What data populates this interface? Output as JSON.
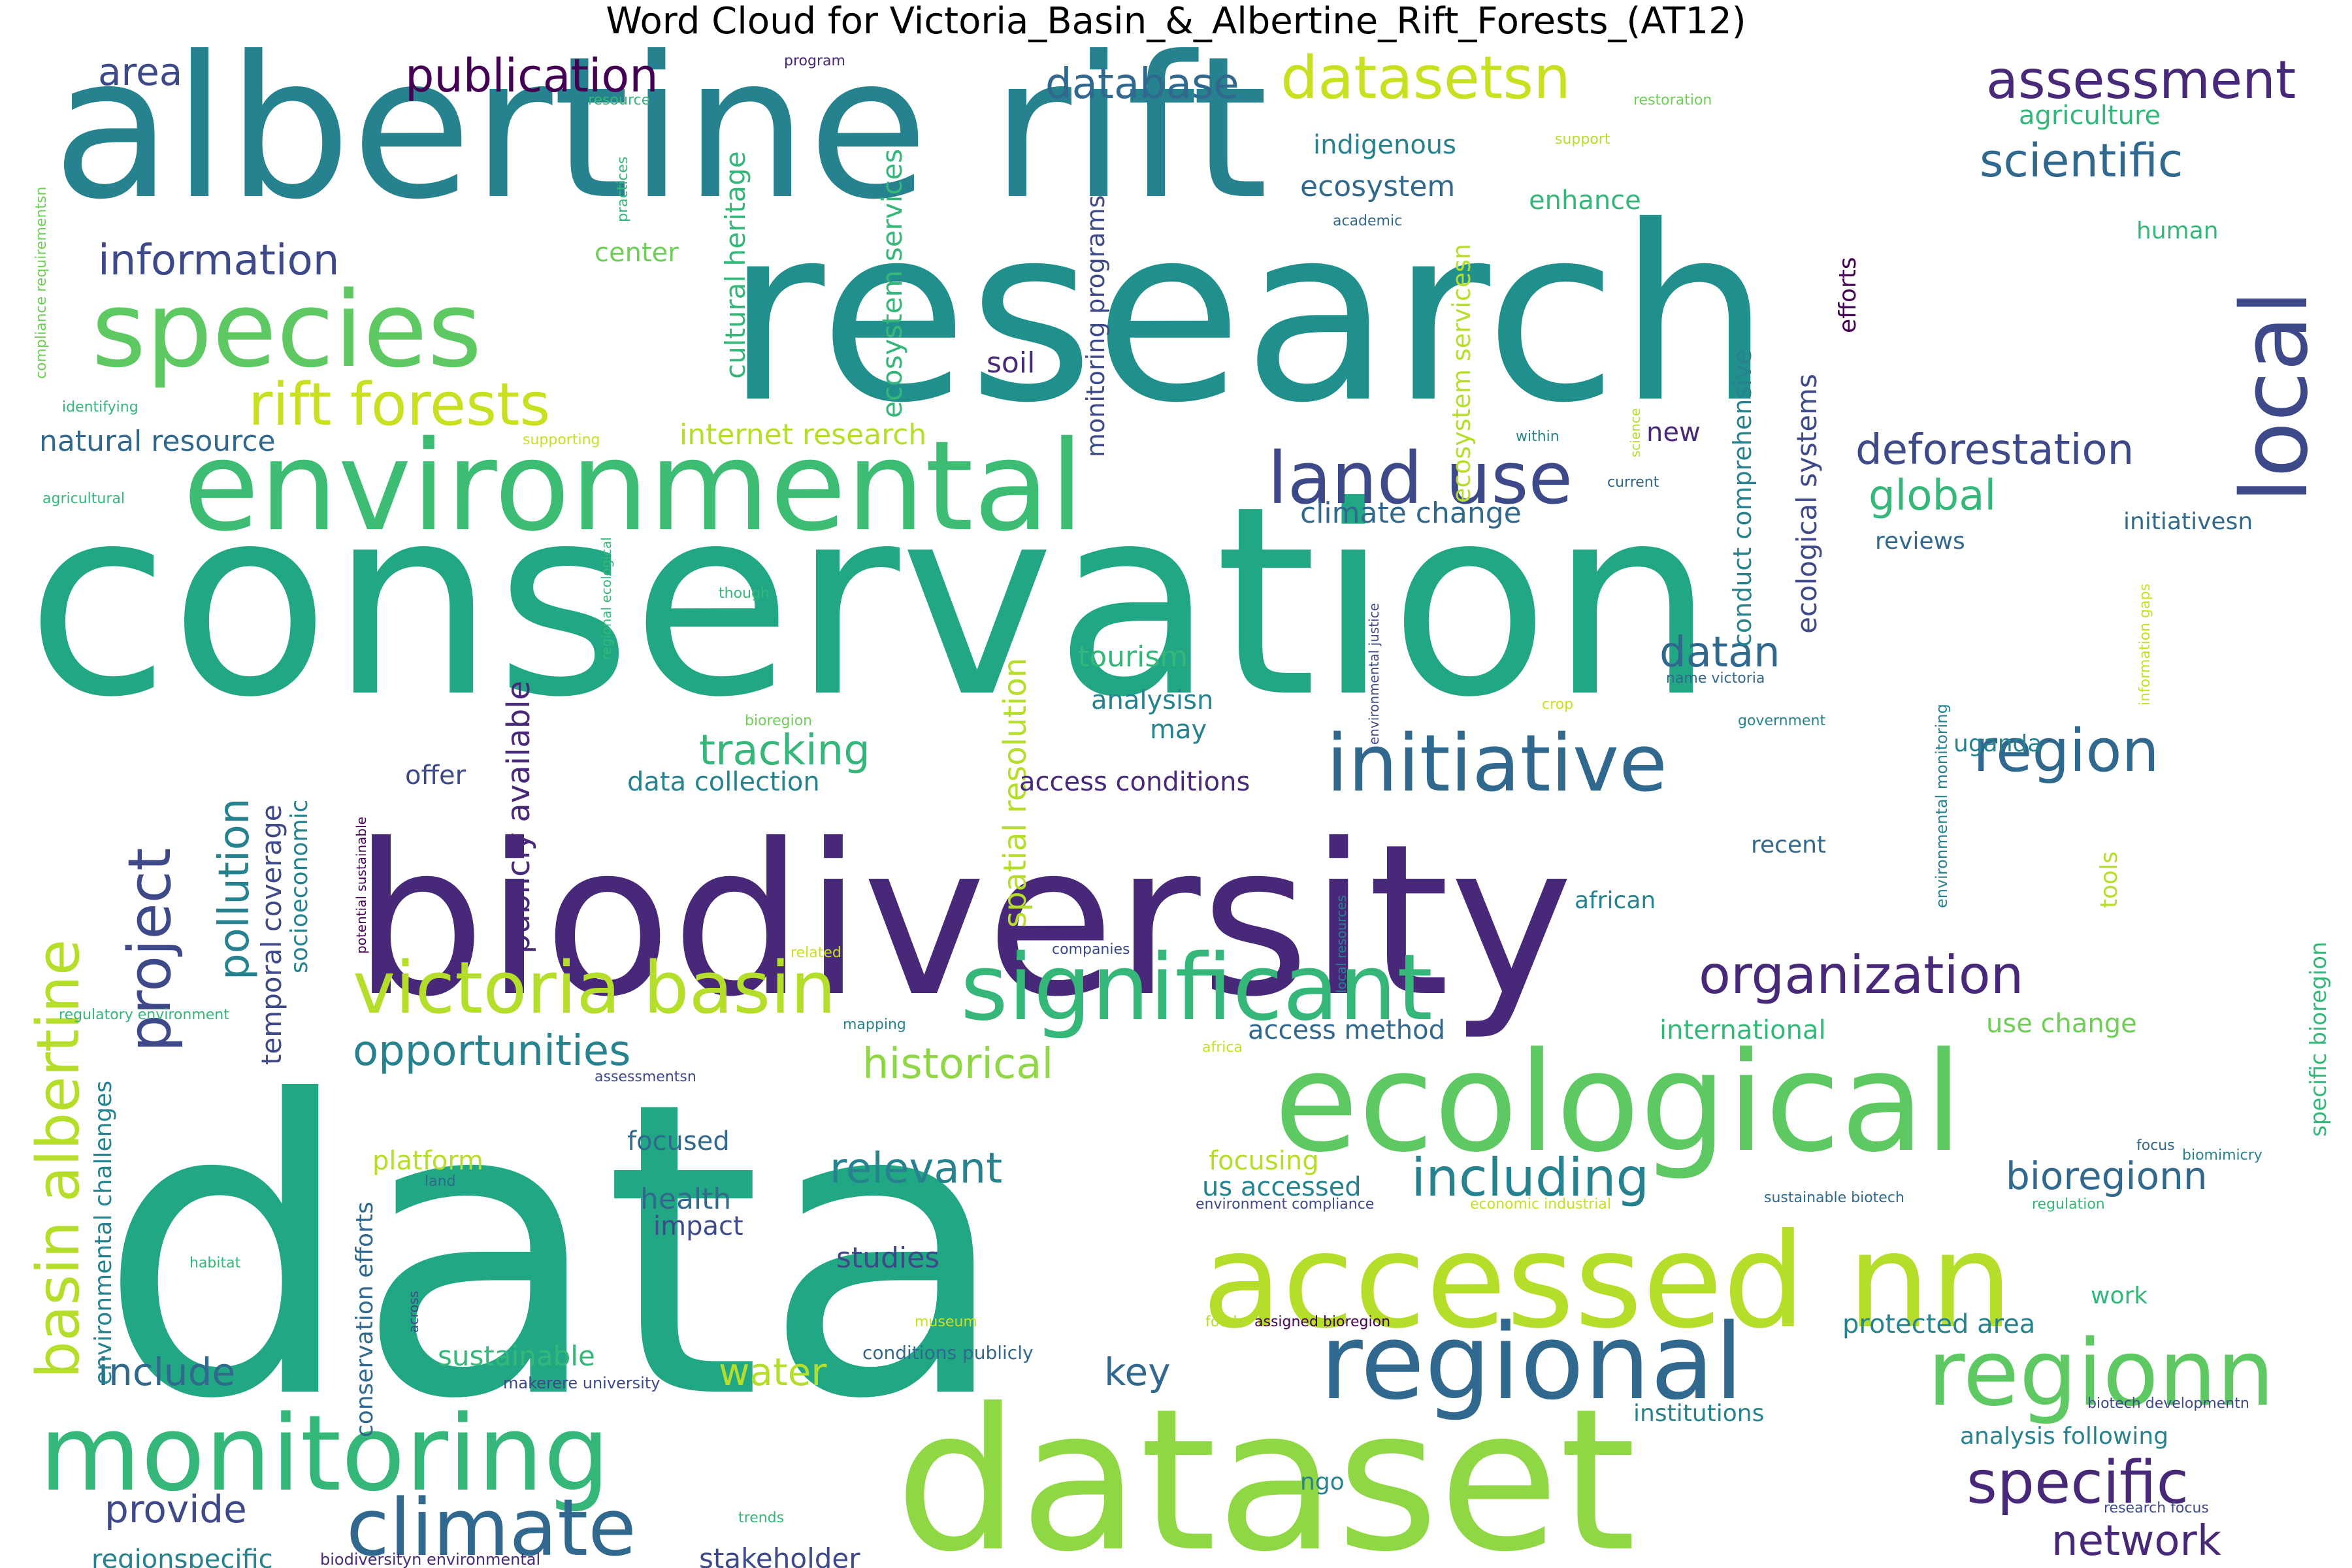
{
  "title": "Word Cloud for Victoria_Basin_&_Albertine_Rift_Forests_(AT12)",
  "palette": [
    "#440154",
    "#482878",
    "#3e4989",
    "#31688e",
    "#26828e",
    "#1f9e89",
    "#35b779",
    "#6ece58",
    "#b5de2b",
    "#fde725"
  ],
  "words": [
    {
      "text": "albertine rift",
      "weight": 100,
      "color": "#26828e"
    },
    {
      "text": "research",
      "weight": 100,
      "color": "#21908d"
    },
    {
      "text": "conservation",
      "weight": 100,
      "color": "#22a785"
    },
    {
      "text": "biodiversity",
      "weight": 100,
      "color": "#482878"
    },
    {
      "text": "data",
      "weight": 100,
      "color": "#22a785"
    },
    {
      "text": "dataset",
      "weight": 85,
      "color": "#8fd744"
    },
    {
      "text": "accessed nn",
      "weight": 75,
      "color": "#b5de2b"
    },
    {
      "text": "ecological",
      "weight": 70,
      "color": "#5ec962"
    },
    {
      "text": "environmental",
      "weight": 70,
      "color": "#3dbc74"
    },
    {
      "text": "species",
      "weight": 55,
      "color": "#5ec962"
    },
    {
      "text": "monitoring",
      "weight": 55,
      "color": "#35b779"
    },
    {
      "text": "local",
      "weight": 45,
      "color": "#3e4989"
    },
    {
      "text": "significant",
      "weight": 50,
      "color": "#35b779"
    },
    {
      "text": "regional",
      "weight": 50,
      "color": "#31688e"
    },
    {
      "text": "regionn",
      "weight": 48,
      "color": "#5ec962"
    },
    {
      "text": "initiative",
      "weight": 45,
      "color": "#31688e"
    },
    {
      "text": "climate",
      "weight": 42,
      "color": "#31688e"
    },
    {
      "text": "victoria basin",
      "weight": 40,
      "color": "#b5de2b"
    },
    {
      "text": "rift forests",
      "weight": 38,
      "color": "#c8e020"
    },
    {
      "text": "basin albertine",
      "weight": 36,
      "color": "#b5de2b"
    },
    {
      "text": "project",
      "weight": 36,
      "color": "#3e4989"
    },
    {
      "text": "land use",
      "weight": 36,
      "color": "#3e4989"
    },
    {
      "text": "region",
      "weight": 34,
      "color": "#31688e"
    },
    {
      "text": "specific",
      "weight": 32,
      "color": "#482878"
    },
    {
      "text": "including",
      "weight": 32,
      "color": "#26828e"
    },
    {
      "text": "organization",
      "weight": 30,
      "color": "#482878"
    },
    {
      "text": "datasetsn",
      "weight": 30,
      "color": "#c8e020"
    },
    {
      "text": "assessment",
      "weight": 30,
      "color": "#482878"
    },
    {
      "text": "publication",
      "weight": 28,
      "color": "#440154"
    },
    {
      "text": "scientific",
      "weight": 26,
      "color": "#31688e"
    },
    {
      "text": "deforestation",
      "weight": 26,
      "color": "#3e4989"
    },
    {
      "text": "information",
      "weight": 26,
      "color": "#3e4989"
    },
    {
      "text": "opportunities",
      "weight": 26,
      "color": "#26828e"
    },
    {
      "text": "historical",
      "weight": 24,
      "color": "#8fd744"
    },
    {
      "text": "relevant",
      "weight": 24,
      "color": "#26828e"
    },
    {
      "text": "tracking",
      "weight": 24,
      "color": "#35b779"
    },
    {
      "text": "global",
      "weight": 24,
      "color": "#35b779"
    },
    {
      "text": "pollution",
      "weight": 24,
      "color": "#26828e"
    },
    {
      "text": "database",
      "weight": 24,
      "color": "#31688e"
    },
    {
      "text": "datan",
      "weight": 24,
      "color": "#31688e"
    },
    {
      "text": "network",
      "weight": 24,
      "color": "#482878"
    },
    {
      "text": "bioregionn",
      "weight": 22,
      "color": "#31688e"
    },
    {
      "text": "provide",
      "weight": 22,
      "color": "#3e4989"
    },
    {
      "text": "include",
      "weight": 22,
      "color": "#31688e"
    },
    {
      "text": "water",
      "weight": 22,
      "color": "#b5de2b"
    },
    {
      "text": "key",
      "weight": 22,
      "color": "#31688e"
    },
    {
      "text": "area",
      "weight": 22,
      "color": "#3e4989"
    },
    {
      "text": "publicly available",
      "weight": 20,
      "color": "#482878"
    },
    {
      "text": "spatial resolution",
      "weight": 20,
      "color": "#b5de2b"
    },
    {
      "text": "temporal coverage",
      "weight": 18,
      "color": "#3e4989"
    },
    {
      "text": "climate change",
      "weight": 18,
      "color": "#31688e"
    },
    {
      "text": "ecosystem services",
      "weight": 18,
      "color": "#35b779"
    },
    {
      "text": "cultural heritage",
      "weight": 18,
      "color": "#35b779"
    },
    {
      "text": "natural resource",
      "weight": 18,
      "color": "#31688e"
    },
    {
      "text": "internet research",
      "weight": 18,
      "color": "#b5de2b"
    },
    {
      "text": "ecological systems",
      "weight": 18,
      "color": "#3e4989"
    },
    {
      "text": "ecosystem",
      "weight": 18,
      "color": "#31688e"
    },
    {
      "text": "tourism",
      "weight": 18,
      "color": "#35b779"
    },
    {
      "text": "studies",
      "weight": 18,
      "color": "#3e4989"
    },
    {
      "text": "health",
      "weight": 18,
      "color": "#31688e"
    },
    {
      "text": "soil",
      "weight": 18,
      "color": "#482878"
    },
    {
      "text": "sustainable",
      "weight": 18,
      "color": "#35b779"
    },
    {
      "text": "stakeholder",
      "weight": 18,
      "color": "#3e4989"
    },
    {
      "text": "regionspecific",
      "weight": 16,
      "color": "#26828e"
    },
    {
      "text": "protected area",
      "weight": 16,
      "color": "#26828e"
    },
    {
      "text": "agriculture",
      "weight": 16,
      "color": "#35b779"
    },
    {
      "text": "indigenous",
      "weight": 16,
      "color": "#26828e"
    },
    {
      "text": "center",
      "weight": 16,
      "color": "#6ece58"
    },
    {
      "text": "enhance",
      "weight": 16,
      "color": "#35b779"
    },
    {
      "text": "data collection",
      "weight": 16,
      "color": "#26828e"
    },
    {
      "text": "access conditions",
      "weight": 16,
      "color": "#482878"
    },
    {
      "text": "analysisn",
      "weight": 16,
      "color": "#26828e"
    },
    {
      "text": "offer",
      "weight": 16,
      "color": "#3e4989"
    },
    {
      "text": "may",
      "weight": 16,
      "color": "#26828e"
    },
    {
      "text": "new",
      "weight": 16,
      "color": "#482878"
    },
    {
      "text": "platform",
      "weight": 16,
      "color": "#b5de2b"
    },
    {
      "text": "focused",
      "weight": 16,
      "color": "#31688e"
    },
    {
      "text": "impact",
      "weight": 16,
      "color": "#3e4989"
    },
    {
      "text": "focusing",
      "weight": 16,
      "color": "#b5de2b"
    },
    {
      "text": "us accessed",
      "weight": 16,
      "color": "#26828e"
    },
    {
      "text": "access method",
      "weight": 16,
      "color": "#31688e"
    },
    {
      "text": "international",
      "weight": 16,
      "color": "#35b779"
    },
    {
      "text": "use change",
      "weight": 16,
      "color": "#6ece58"
    },
    {
      "text": "monitoring programs",
      "weight": 16,
      "color": "#3e4989"
    },
    {
      "text": "conduct comprehensive",
      "weight": 16,
      "color": "#26828e"
    },
    {
      "text": "ecosystem servicesn",
      "weight": 16,
      "color": "#b5de2b"
    },
    {
      "text": "socioeconomic",
      "weight": 16,
      "color": "#26828e"
    },
    {
      "text": "environmental challenges",
      "weight": 16,
      "color": "#26828e"
    },
    {
      "text": "conservation efforts",
      "weight": 16,
      "color": "#31688e"
    },
    {
      "text": "uganda",
      "weight": 14,
      "color": "#26828e"
    },
    {
      "text": "recent",
      "weight": 14,
      "color": "#31688e"
    },
    {
      "text": "african",
      "weight": 14,
      "color": "#26828e"
    },
    {
      "text": "tools",
      "weight": 14,
      "color": "#b5de2b"
    },
    {
      "text": "work",
      "weight": 14,
      "color": "#35b779"
    },
    {
      "text": "human",
      "weight": 14,
      "color": "#35b779"
    },
    {
      "text": "reviews",
      "weight": 14,
      "color": "#31688e"
    },
    {
      "text": "initiativesn",
      "weight": 14,
      "color": "#31688e"
    },
    {
      "text": "efforts",
      "weight": 14,
      "color": "#440154"
    },
    {
      "text": "institutions",
      "weight": 14,
      "color": "#26828e"
    },
    {
      "text": "analysis following",
      "weight": 14,
      "color": "#26828e"
    },
    {
      "text": "specific bioregion",
      "weight": 14,
      "color": "#35b779"
    },
    {
      "text": "ngo",
      "weight": 14,
      "color": "#26828e"
    },
    {
      "text": "environmental monitoring",
      "weight": 12,
      "color": "#26828e"
    },
    {
      "text": "information gaps",
      "weight": 10,
      "color": "#c8e020"
    },
    {
      "text": "compliance requirementsn",
      "weight": 10,
      "color": "#6ece58"
    },
    {
      "text": "practices",
      "weight": 10,
      "color": "#35b779"
    },
    {
      "text": "program",
      "weight": 10,
      "color": "#482878"
    },
    {
      "text": "resource",
      "weight": 10,
      "color": "#35b779"
    },
    {
      "text": "restoration",
      "weight": 10,
      "color": "#6ece58"
    },
    {
      "text": "support",
      "weight": 10,
      "color": "#b5de2b"
    },
    {
      "text": "academic",
      "weight": 10,
      "color": "#31688e"
    },
    {
      "text": "identifying",
      "weight": 10,
      "color": "#35b779"
    },
    {
      "text": "supporting",
      "weight": 10,
      "color": "#c8e020"
    },
    {
      "text": "agricultural",
      "weight": 10,
      "color": "#35b779"
    },
    {
      "text": "regional ecological",
      "weight": 10,
      "color": "#35b779"
    },
    {
      "text": "within",
      "weight": 10,
      "color": "#26828e"
    },
    {
      "text": "science",
      "weight": 10,
      "color": "#b5de2b"
    },
    {
      "text": "current",
      "weight": 10,
      "color": "#31688e"
    },
    {
      "text": "though",
      "weight": 10,
      "color": "#35b779"
    },
    {
      "text": "bioregion",
      "weight": 10,
      "color": "#6ece58"
    },
    {
      "text": "crop",
      "weight": 10,
      "color": "#c8e020"
    },
    {
      "text": "name victoria",
      "weight": 10,
      "color": "#31688e"
    },
    {
      "text": "government",
      "weight": 10,
      "color": "#26828e"
    },
    {
      "text": "environmental justice",
      "weight": 10,
      "color": "#3e4989"
    },
    {
      "text": "potential sustainable",
      "weight": 10,
      "color": "#440154"
    },
    {
      "text": "local resources",
      "weight": 10,
      "color": "#26828e"
    },
    {
      "text": "regulatory environment",
      "weight": 10,
      "color": "#35b779"
    },
    {
      "text": "related",
      "weight": 10,
      "color": "#c8e020"
    },
    {
      "text": "companies",
      "weight": 10,
      "color": "#3e4989"
    },
    {
      "text": "mapping",
      "weight": 10,
      "color": "#26828e"
    },
    {
      "text": "africa",
      "weight": 10,
      "color": "#c8e020"
    },
    {
      "text": "assessmentsn",
      "weight": 10,
      "color": "#3e4989"
    },
    {
      "text": "land",
      "weight": 10,
      "color": "#31688e"
    },
    {
      "text": "habitat",
      "weight": 10,
      "color": "#35b779"
    },
    {
      "text": "across",
      "weight": 10,
      "color": "#3e4989"
    },
    {
      "text": "biomimicry",
      "weight": 10,
      "color": "#26828e"
    },
    {
      "text": "focus",
      "weight": 10,
      "color": "#31688e"
    },
    {
      "text": "sustainable biotech",
      "weight": 10,
      "color": "#31688e"
    },
    {
      "text": "regulation",
      "weight": 10,
      "color": "#35b779"
    },
    {
      "text": "environment compliance",
      "weight": 10,
      "color": "#3e4989"
    },
    {
      "text": "economic industrial",
      "weight": 10,
      "color": "#c8e020"
    },
    {
      "text": "museum",
      "weight": 10,
      "color": "#c8e020"
    },
    {
      "text": "food",
      "weight": 10,
      "color": "#b5de2b"
    },
    {
      "text": "assigned bioregion",
      "weight": 10,
      "color": "#440154"
    },
    {
      "text": "biotech developmentn",
      "weight": 10,
      "color": "#3e4989"
    },
    {
      "text": "makerere university",
      "weight": 10,
      "color": "#3e4989"
    },
    {
      "text": "conditions publicly",
      "weight": 10,
      "color": "#31688e"
    },
    {
      "text": "trends",
      "weight": 10,
      "color": "#35b779"
    },
    {
      "text": "research focus",
      "weight": 10,
      "color": "#3e4989"
    },
    {
      "text": "biodiversityn environmental",
      "weight": 10,
      "color": "#482878"
    }
  ]
}
